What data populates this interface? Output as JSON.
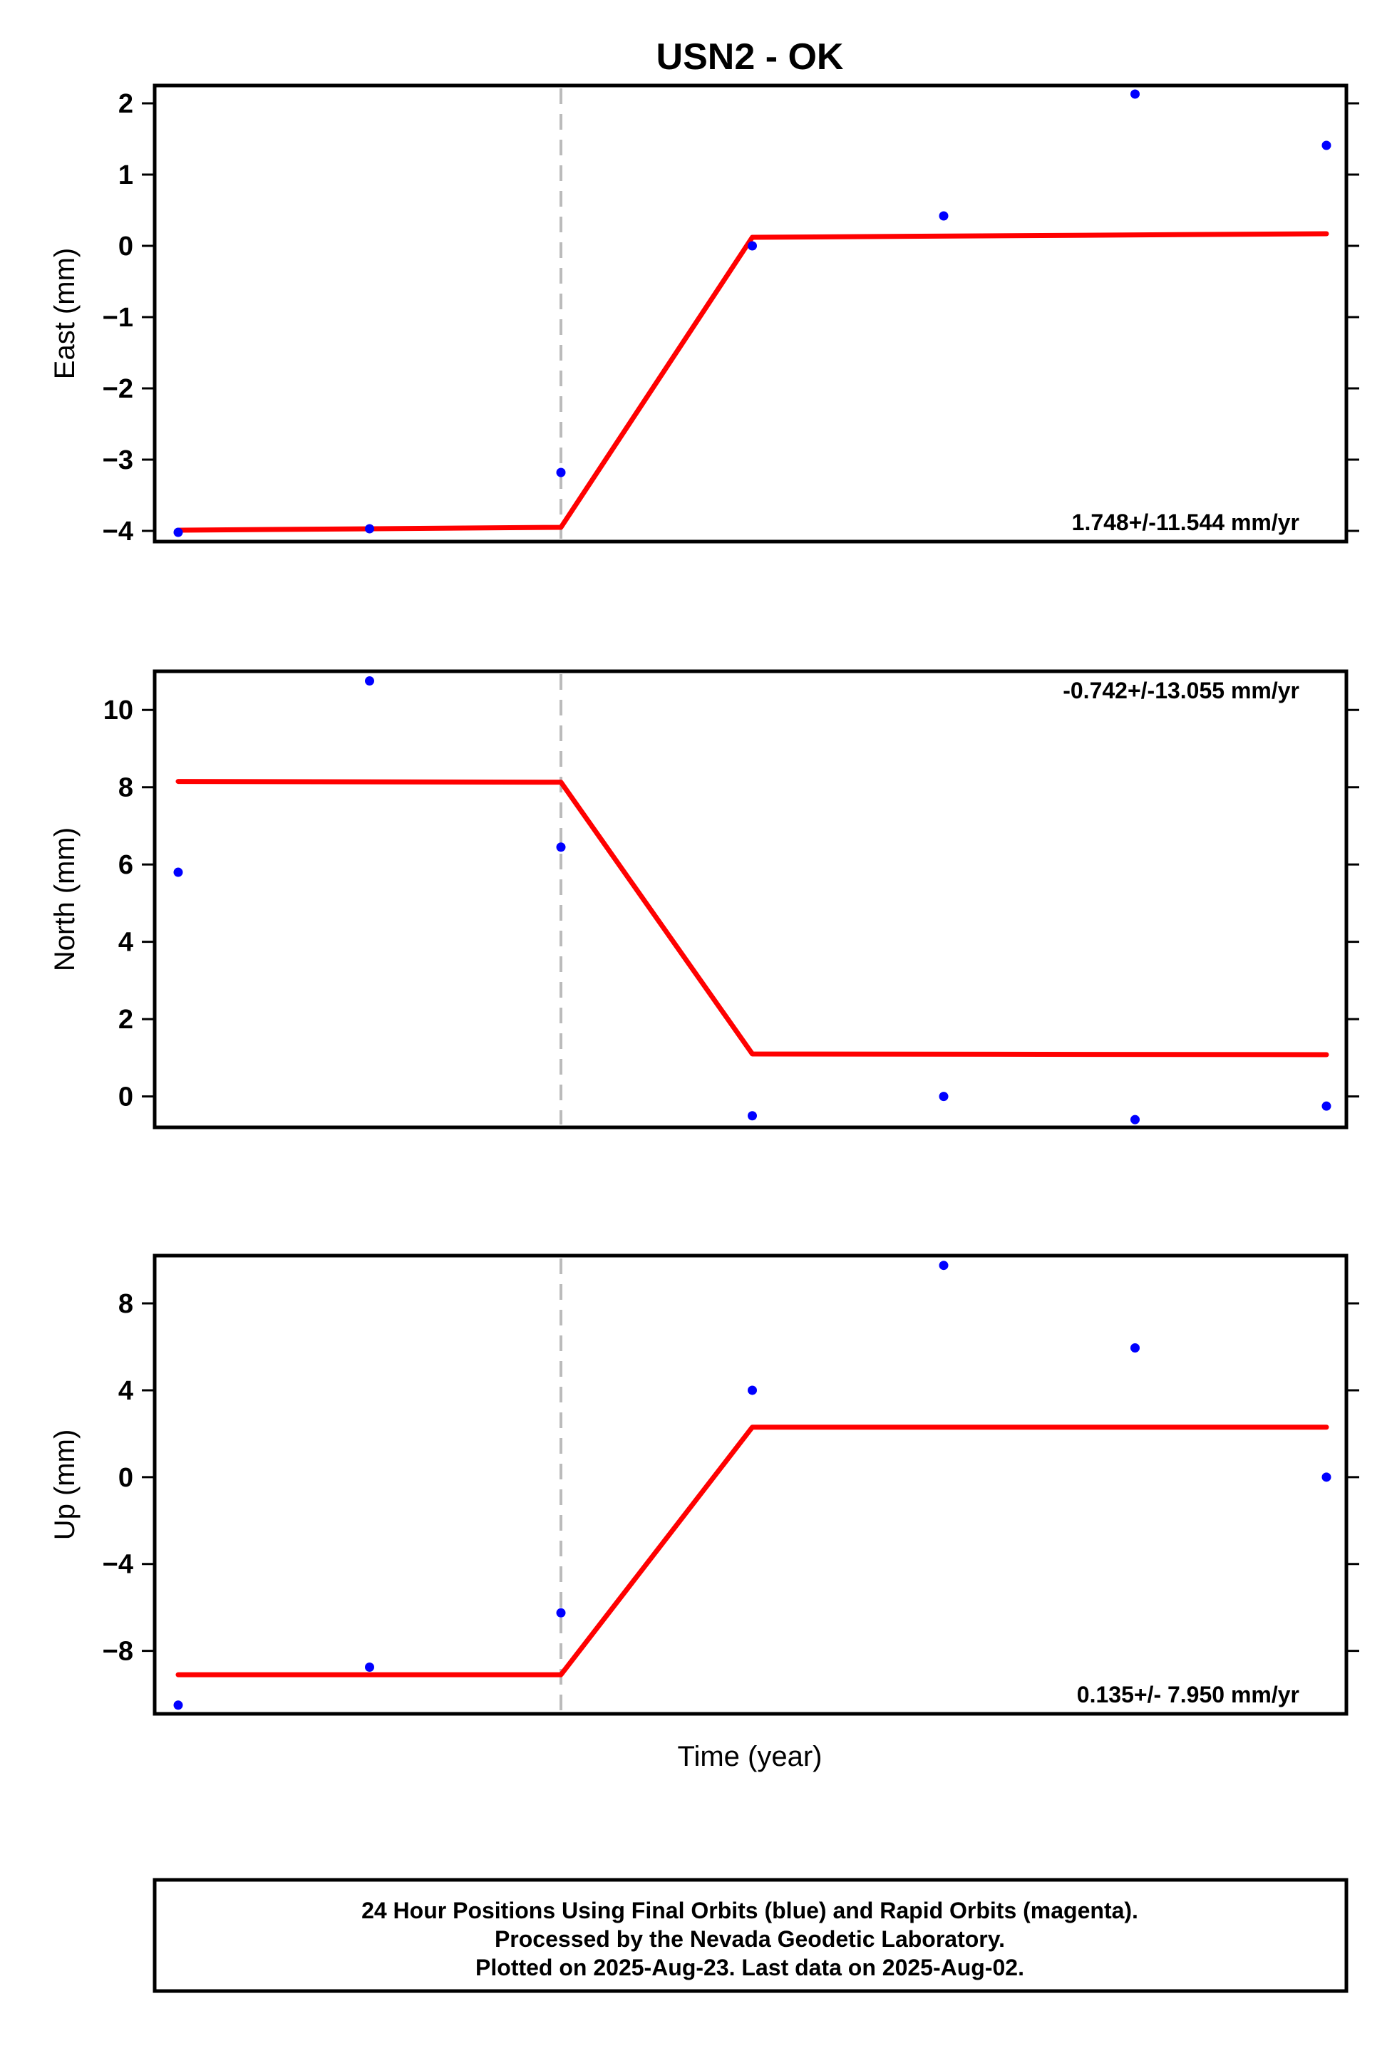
{
  "title": "USN2 - OK",
  "xlabel": "Time (year)",
  "colors": {
    "data_points": "#0000ff",
    "model_line": "#ff0000",
    "event_line": "#bbbbbb",
    "frame": "#000000"
  },
  "footer": {
    "line1": "24 Hour Positions Using Final Orbits (blue) and Rapid Orbits (magenta).",
    "line2": "Processed by the Nevada Geodetic Laboratory.",
    "line3": "Plotted on 2025-Aug-23. Last data on 2025-Aug-02."
  },
  "chart_data": [
    {
      "type": "scatter",
      "ylabel": "East (mm)",
      "rate_label": "1.748+/-11.544 mm/yr",
      "rate_position": "bottom-right",
      "ylim": [
        -4.15,
        2.25
      ],
      "yticks": [
        2,
        1,
        0,
        -1,
        -2,
        -3,
        -4
      ],
      "ytick_labels": [
        "2",
        "1",
        "0",
        "−1",
        "−2",
        "−3",
        "−4"
      ],
      "grid": false,
      "event_x": 3,
      "x": [
        1,
        2,
        3,
        4,
        5,
        6,
        7
      ],
      "series": [
        {
          "values": [
            -4.02,
            -3.97,
            -3.18,
            0.0,
            0.42,
            2.13,
            1.41
          ]
        }
      ],
      "model": {
        "x": [
          1,
          3,
          4,
          7
        ],
        "y": [
          -3.99,
          -3.95,
          0.12,
          0.17
        ]
      }
    },
    {
      "type": "scatter",
      "ylabel": "North (mm)",
      "rate_label": "-0.742+/-13.055 mm/yr",
      "rate_position": "top-right",
      "ylim": [
        -0.8,
        11.0
      ],
      "yticks": [
        10,
        8,
        6,
        4,
        2,
        0
      ],
      "ytick_labels": [
        "10",
        "8",
        "6",
        "4",
        "2",
        "0"
      ],
      "grid": false,
      "event_x": 3,
      "x": [
        1,
        2,
        3,
        4,
        5,
        6,
        7
      ],
      "series": [
        {
          "values": [
            5.8,
            10.75,
            6.45,
            -0.5,
            0.0,
            -0.6,
            -0.25
          ]
        }
      ],
      "model": {
        "x": [
          1,
          3,
          4,
          7
        ],
        "y": [
          8.15,
          8.13,
          1.1,
          1.08
        ]
      }
    },
    {
      "type": "scatter",
      "ylabel": "Up (mm)",
      "rate_label": "0.135+/- 7.950 mm/yr",
      "rate_position": "bottom-right",
      "ylim": [
        -10.9,
        10.2
      ],
      "yticks": [
        8,
        4,
        0,
        -4,
        -8
      ],
      "ytick_labels": [
        "8",
        "4",
        "0",
        "−4",
        "−8"
      ],
      "grid": false,
      "event_x": 3,
      "x": [
        1,
        2,
        3,
        4,
        5,
        6,
        7
      ],
      "series": [
        {
          "values": [
            -10.5,
            -8.75,
            -6.25,
            4.0,
            9.75,
            5.95,
            0.0
          ]
        }
      ],
      "model": {
        "x": [
          1,
          3,
          4,
          7
        ],
        "y": [
          -9.1,
          -9.1,
          2.3,
          2.3
        ]
      }
    }
  ]
}
